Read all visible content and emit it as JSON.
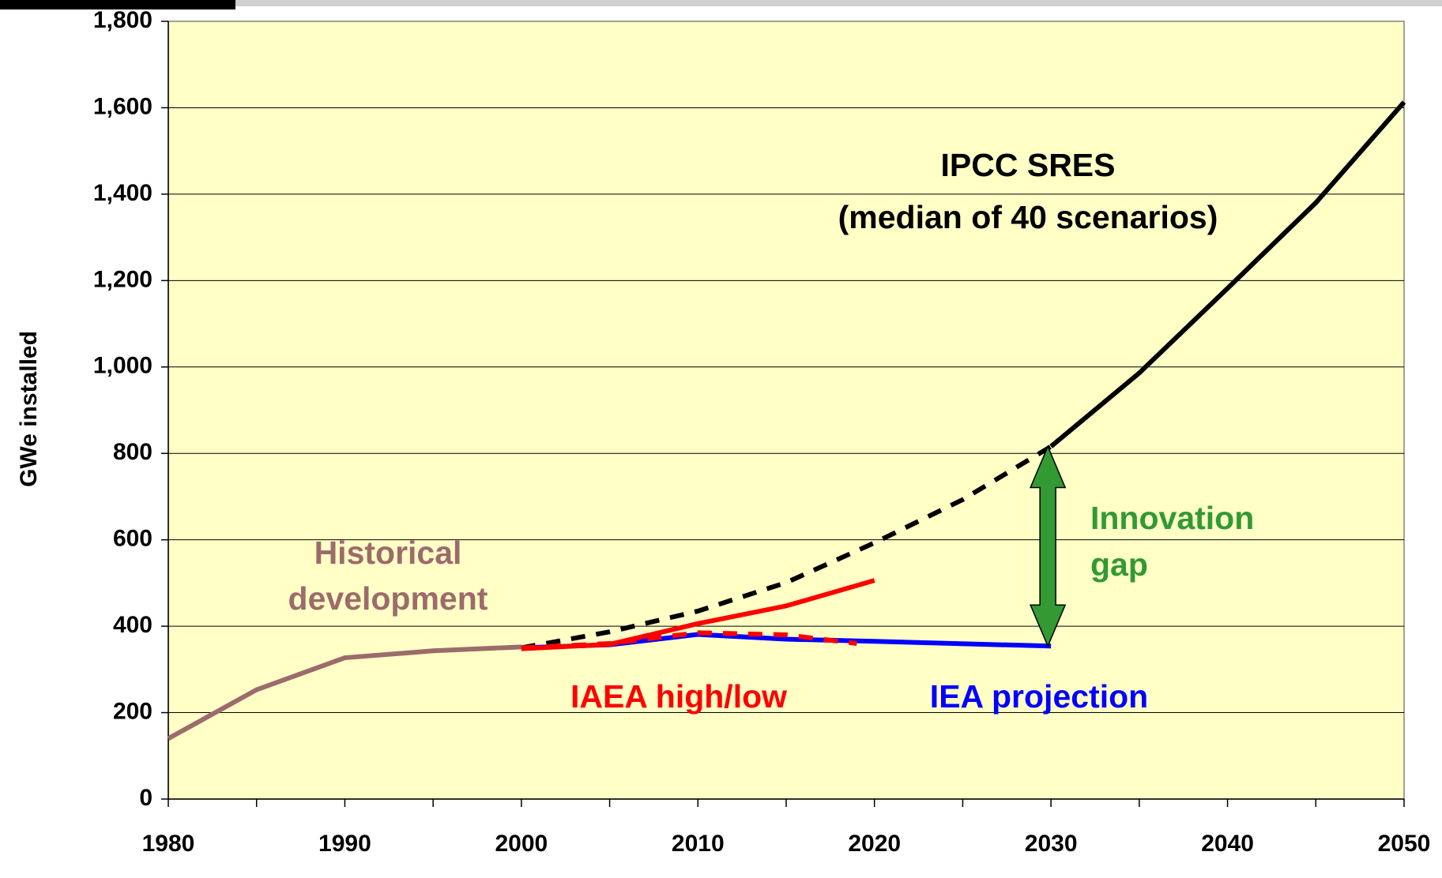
{
  "chart_data": {
    "type": "line",
    "ylabel": "GWe installed",
    "xlim": [
      1980,
      2050
    ],
    "xticks": [
      1980,
      1990,
      2000,
      2010,
      2020,
      2030,
      2040,
      2050
    ],
    "xticks_minor": [
      1985,
      1995,
      2005,
      2015,
      2025,
      2035,
      2045
    ],
    "ylim": [
      0,
      1800
    ],
    "yticks": [
      0,
      200,
      400,
      600,
      800,
      {
        "value": 1000,
        "label": "1,000"
      },
      {
        "value": 1200,
        "label": "1,200"
      },
      {
        "value": 1400,
        "label": "1,400"
      },
      {
        "value": 1600,
        "label": "1,600"
      },
      {
        "value": 1800,
        "label": "1,800"
      }
    ],
    "grid": true,
    "background": "#ffffc6",
    "series": [
      {
        "color": "#9c6b6b",
        "dash": false,
        "x": [
          1980,
          1985,
          1990,
          1995,
          2000
        ],
        "values": [
          140,
          253,
          327,
          343,
          352
        ]
      },
      {
        "color": "#000000",
        "dash": true,
        "x": [
          2000,
          2005,
          2010,
          2015,
          2020,
          2025,
          2030
        ],
        "values": [
          350,
          387,
          435,
          501,
          593,
          693,
          816
        ]
      },
      {
        "color": "#000000",
        "dash": false,
        "x": [
          2030,
          2035,
          2040,
          2045,
          2050
        ],
        "values": [
          816,
          986,
          1182,
          1380,
          1613
        ]
      },
      {
        "color": "#0000ff",
        "dash": false,
        "x": [
          2000,
          2005,
          2010,
          2015,
          2020,
          2030
        ],
        "values": [
          350,
          357,
          381,
          370,
          365,
          354
        ]
      },
      {
        "color": "#ff0000",
        "dash": true,
        "x": [
          2000,
          2005,
          2010,
          2015,
          2019
        ],
        "values": [
          350,
          360,
          385,
          380,
          360
        ]
      },
      {
        "color": "#ff0000",
        "dash": false,
        "x": [
          2000,
          2005,
          2010,
          2015,
          2020
        ],
        "values": [
          348,
          358,
          406,
          447,
          506
        ]
      }
    ],
    "annotations": [
      {
        "lines": [
          "IPCC SRES",
          "(median of 40 scenarios)"
        ],
        "color": "#000000"
      },
      {
        "lines": [
          "Historical",
          "development"
        ],
        "color": "#9c6b6b"
      },
      {
        "lines": [
          "IAEA high/low"
        ],
        "color": "#ff0000"
      },
      {
        "lines": [
          "IEA projection"
        ],
        "color": "#0000ff"
      },
      {
        "lines": [
          "Innovation",
          "gap"
        ],
        "color": "#339933"
      }
    ],
    "gap_color": "#339933"
  }
}
